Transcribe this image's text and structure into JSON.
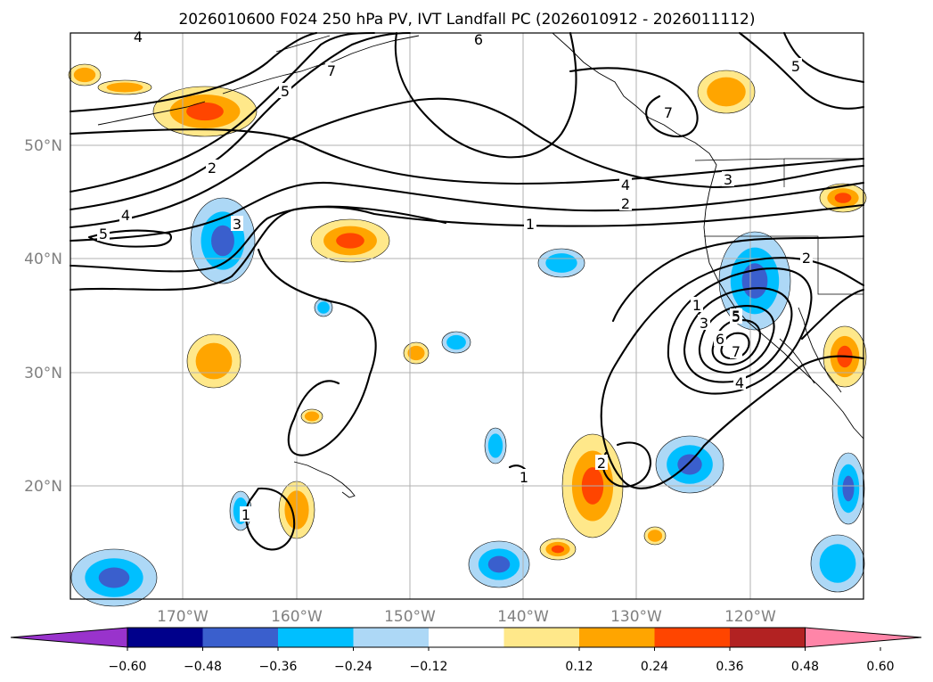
{
  "title": "2026010600 F024 250 hPa PV, IVT Landfall PC (2026010912 - 2026011112)",
  "lat_labels": [
    "50°N",
    "40°N",
    "30°N",
    "20°N"
  ],
  "lon_labels": [
    "170°W",
    "160°W",
    "150°W",
    "140°W",
    "130°W",
    "120°W"
  ],
  "contour_labels": [
    "4",
    "6",
    "5",
    "5",
    "7",
    "7",
    "2",
    "4",
    "2",
    "3",
    "1",
    "4",
    "5",
    "3",
    "2",
    "1",
    "3",
    "5",
    "6",
    "7",
    "4",
    "2",
    "1",
    "1",
    "5"
  ],
  "colorbar": {
    "ticks": [
      "−0.60",
      "−0.48",
      "−0.36",
      "−0.24",
      "−0.12",
      "0.12",
      "0.24",
      "0.36",
      "0.48",
      "0.60"
    ],
    "colors": [
      "#9933cc",
      "#00008b",
      "#3a5fcd",
      "#00bfff",
      "#add8f6",
      "#ffffff",
      "#ffe88a",
      "#ffa500",
      "#ff4500",
      "#b22222",
      "#ff85a8"
    ]
  },
  "shading_colors": {
    "neg_light": "#add8f6",
    "neg_mid": "#00bfff",
    "neg_dark": "#3a5fcd",
    "pos_light": "#ffe88a",
    "pos_mid": "#ffa500",
    "pos_dark": "#ff4500"
  }
}
